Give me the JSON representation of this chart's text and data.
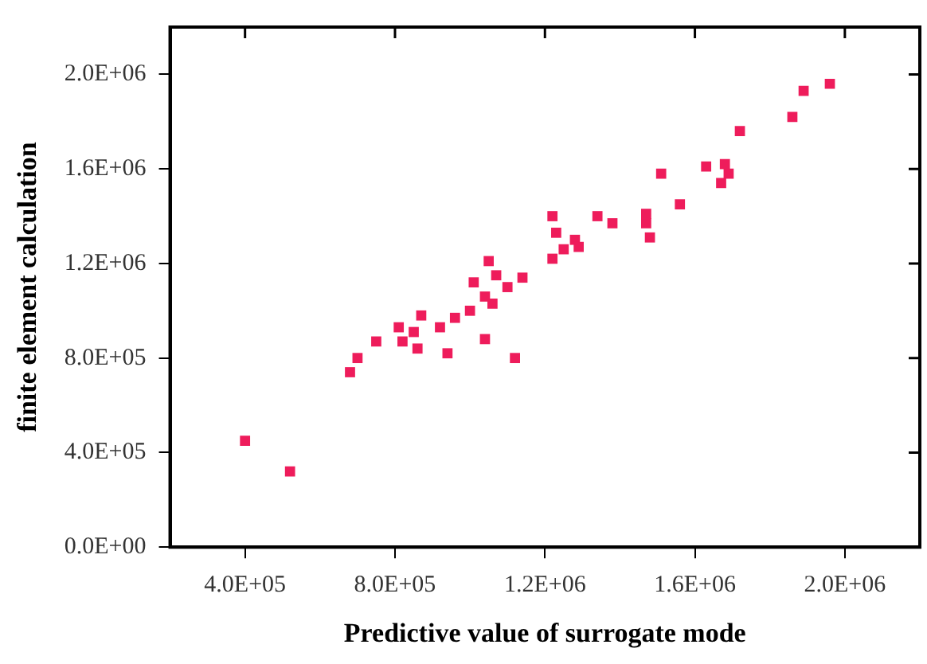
{
  "chart_data": {
    "type": "scatter",
    "xlabel": "Predictive value of surrogate mode",
    "ylabel": "finite element calculation",
    "marker": "square",
    "grid": false,
    "xlim": [
      200000,
      2200000
    ],
    "xticks": [
      {
        "value": 400000,
        "label": "4.0E+05"
      },
      {
        "value": 800000,
        "label": "8.0E+05"
      },
      {
        "value": 1200000,
        "label": "1.2E+06"
      },
      {
        "value": 1600000,
        "label": "1.6E+06"
      },
      {
        "value": 2000000,
        "label": "2.0E+06"
      }
    ],
    "ylim": [
      0,
      2200000
    ],
    "yticks": [
      {
        "value": 0,
        "label": "0.0E+00"
      },
      {
        "value": 400000,
        "label": "4.0E+05"
      },
      {
        "value": 800000,
        "label": "8.0E+05"
      },
      {
        "value": 1200000,
        "label": "1.2E+06"
      },
      {
        "value": 1600000,
        "label": "1.6E+06"
      },
      {
        "value": 2000000,
        "label": "2.0E+06"
      }
    ],
    "series": [
      {
        "color": "#ee1c5b",
        "x": [
          400000,
          520000,
          680000,
          700000,
          750000,
          810000,
          820000,
          850000,
          860000,
          870000,
          920000,
          940000,
          960000,
          1000000,
          1010000,
          1040000,
          1040000,
          1050000,
          1060000,
          1070000,
          1100000,
          1120000,
          1140000,
          1220000,
          1220000,
          1230000,
          1250000,
          1280000,
          1290000,
          1340000,
          1380000,
          1470000,
          1470000,
          1480000,
          1510000,
          1560000,
          1630000,
          1670000,
          1680000,
          1690000,
          1720000,
          1860000,
          1890000,
          1960000
        ],
        "values": [
          450000,
          320000,
          740000,
          800000,
          870000,
          930000,
          870000,
          910000,
          840000,
          980000,
          930000,
          820000,
          970000,
          1000000,
          1120000,
          1060000,
          880000,
          1210000,
          1030000,
          1150000,
          1100000,
          800000,
          1140000,
          1220000,
          1400000,
          1330000,
          1260000,
          1300000,
          1270000,
          1400000,
          1370000,
          1410000,
          1370000,
          1310000,
          1580000,
          1450000,
          1610000,
          1540000,
          1620000,
          1580000,
          1760000,
          1820000,
          1930000,
          1960000
        ]
      }
    ]
  }
}
